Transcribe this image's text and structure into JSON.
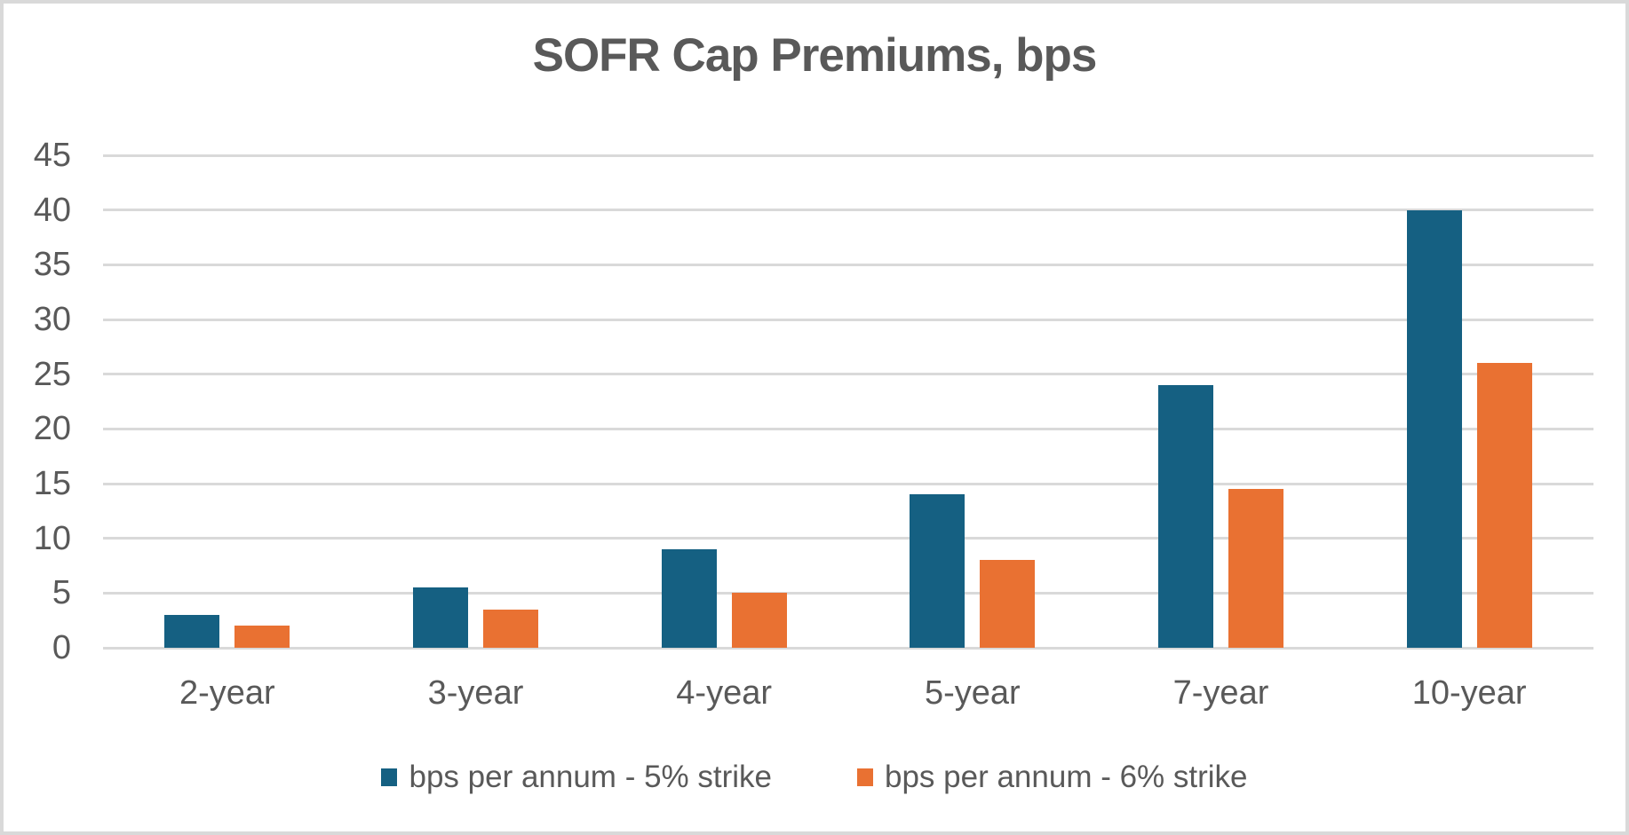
{
  "title": "SOFR Cap Premiums, bps",
  "chart_data": {
    "type": "bar",
    "title": "SOFR Cap Premiums, bps",
    "categories": [
      "2-year",
      "3-year",
      "4-year",
      "5-year",
      "7-year",
      "10-year"
    ],
    "series": [
      {
        "name": "bps per annum - 5% strike",
        "color": "#156082",
        "values": [
          3,
          5.5,
          9,
          14,
          24,
          40
        ]
      },
      {
        "name": "bps per annum - 6% strike",
        "color": "#E97132",
        "values": [
          2,
          3.5,
          5,
          8,
          14.5,
          26
        ]
      }
    ],
    "ylim": [
      0,
      45
    ],
    "ytick_step": 5,
    "ytick_labels": [
      "0",
      "5",
      "10",
      "15",
      "20",
      "25",
      "30",
      "35",
      "40",
      "45"
    ],
    "grid": true,
    "legend_position": "bottom",
    "xlabel": "",
    "ylabel": ""
  },
  "colors": {
    "axis_text": "#595959",
    "title_text": "#595959",
    "gridline": "#d9d9d9",
    "background": "#ffffff",
    "frame_border": "#d9d9d9"
  }
}
